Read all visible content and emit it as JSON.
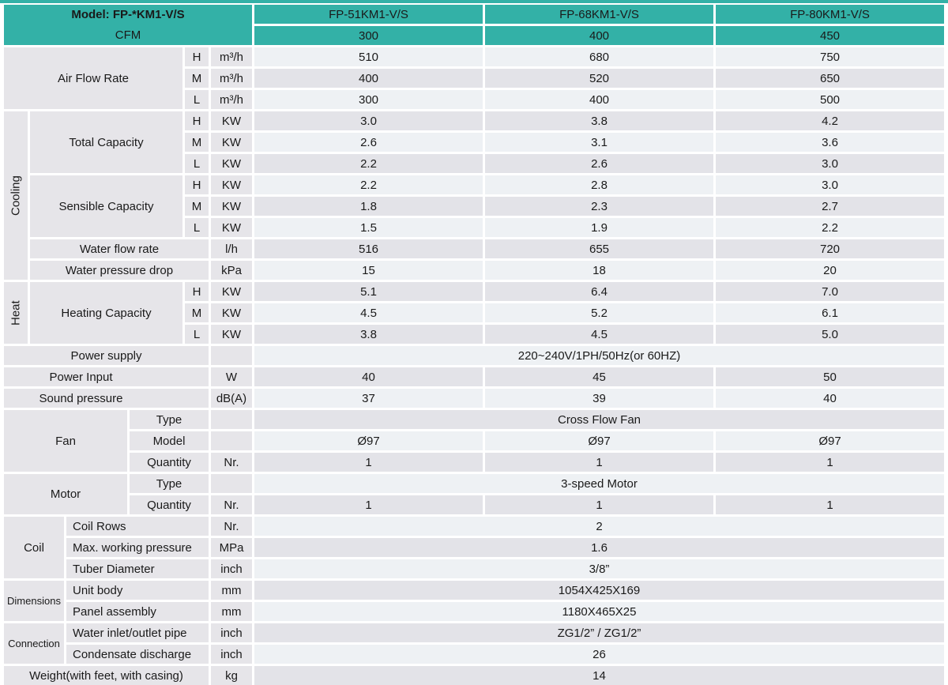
{
  "colors": {
    "accent": "#33b1a7",
    "label_bg": "#e6e5e9",
    "row_light": "#eef1f4",
    "row_dark": "#e3e3e8"
  },
  "header": {
    "model": "Model: FP-*KM1-V/S",
    "cfm": "CFM",
    "models": [
      "FP-51KM1-V/S",
      "FP-68KM1-V/S",
      "FP-80KM1-V/S"
    ],
    "cfm_values": [
      "300",
      "400",
      "450"
    ]
  },
  "airflow": {
    "label": "Air Flow Rate",
    "rows": [
      {
        "speed": "H",
        "unit": "m³/h",
        "v": [
          "510",
          "680",
          "750"
        ]
      },
      {
        "speed": "M",
        "unit": "m³/h",
        "v": [
          "400",
          "520",
          "650"
        ]
      },
      {
        "speed": "L",
        "unit": "m³/h",
        "v": [
          "300",
          "400",
          "500"
        ]
      }
    ]
  },
  "cooling": {
    "label": "Cooling",
    "total": {
      "label": "Total Capacity",
      "rows": [
        {
          "speed": "H",
          "unit": "KW",
          "v": [
            "3.0",
            "3.8",
            "4.2"
          ]
        },
        {
          "speed": "M",
          "unit": "KW",
          "v": [
            "2.6",
            "3.1",
            "3.6"
          ]
        },
        {
          "speed": "L",
          "unit": "KW",
          "v": [
            "2.2",
            "2.6",
            "3.0"
          ]
        }
      ]
    },
    "sensible": {
      "label": "Sensible Capacity",
      "rows": [
        {
          "speed": "H",
          "unit": "KW",
          "v": [
            "2.2",
            "2.8",
            "3.0"
          ]
        },
        {
          "speed": "M",
          "unit": "KW",
          "v": [
            "1.8",
            "2.3",
            "2.7"
          ]
        },
        {
          "speed": "L",
          "unit": "KW",
          "v": [
            "1.5",
            "1.9",
            "2.2"
          ]
        }
      ]
    },
    "water_flow": {
      "label": "Water flow rate",
      "unit": "l/h",
      "v": [
        "516",
        "655",
        "720"
      ]
    },
    "water_drop": {
      "label": "Water pressure drop",
      "unit": "kPa",
      "v": [
        "15",
        "18",
        "20"
      ]
    }
  },
  "heat": {
    "label": "Heat",
    "heating": {
      "label": "Heating Capacity",
      "rows": [
        {
          "speed": "H",
          "unit": "KW",
          "v": [
            "5.1",
            "6.4",
            "7.0"
          ]
        },
        {
          "speed": "M",
          "unit": "KW",
          "v": [
            "4.5",
            "5.2",
            "6.1"
          ]
        },
        {
          "speed": "L",
          "unit": "KW",
          "v": [
            "3.8",
            "4.5",
            "5.0"
          ]
        }
      ]
    }
  },
  "power": {
    "supply": {
      "label": "Power supply",
      "value": "220~240V/1PH/50Hz(or 60HZ)"
    },
    "input": {
      "label": "Power Input",
      "unit": "W",
      "v": [
        "40",
        "45",
        "50"
      ]
    },
    "sound": {
      "label": "Sound pressure",
      "unit": "dB(A)",
      "v": [
        "37",
        "39",
        "40"
      ]
    }
  },
  "fan": {
    "label": "Fan",
    "type": {
      "label": "Type",
      "value": "Cross Flow Fan"
    },
    "model": {
      "label": "Model",
      "v": [
        "Ø97",
        "Ø97",
        "Ø97"
      ]
    },
    "quantity": {
      "label": "Quantity",
      "unit": "Nr.",
      "v": [
        "1",
        "1",
        "1"
      ]
    }
  },
  "motor": {
    "label": "Motor",
    "type": {
      "label": "Type",
      "value": "3-speed Motor"
    },
    "quantity": {
      "label": "Quantity",
      "unit": "Nr.",
      "v": [
        "1",
        "1",
        "1"
      ]
    }
  },
  "coil": {
    "label": "Coil",
    "rows": [
      {
        "label": "Coil Rows",
        "unit": "Nr.",
        "value": "2"
      },
      {
        "label": "Max. working pressure",
        "unit": "MPa",
        "value": "1.6"
      },
      {
        "label": "Tuber Diameter",
        "unit": "inch",
        "value": "3/8”"
      }
    ]
  },
  "dimensions": {
    "label": "Dimensions",
    "rows": [
      {
        "label": "Unit body",
        "unit": "mm",
        "value": "1054X425X169"
      },
      {
        "label": "Panel assembly",
        "unit": "mm",
        "value": "1180X465X25"
      }
    ]
  },
  "connection": {
    "label": "Connection",
    "rows": [
      {
        "label": "Water inlet/outlet pipe",
        "unit": "inch",
        "value": "ZG1/2” / ZG1/2”"
      },
      {
        "label": "Condensate discharge",
        "unit": "inch",
        "value": "26"
      }
    ]
  },
  "weight": {
    "label": "Weight(with feet, with casing)",
    "unit": "kg",
    "value": "14"
  }
}
